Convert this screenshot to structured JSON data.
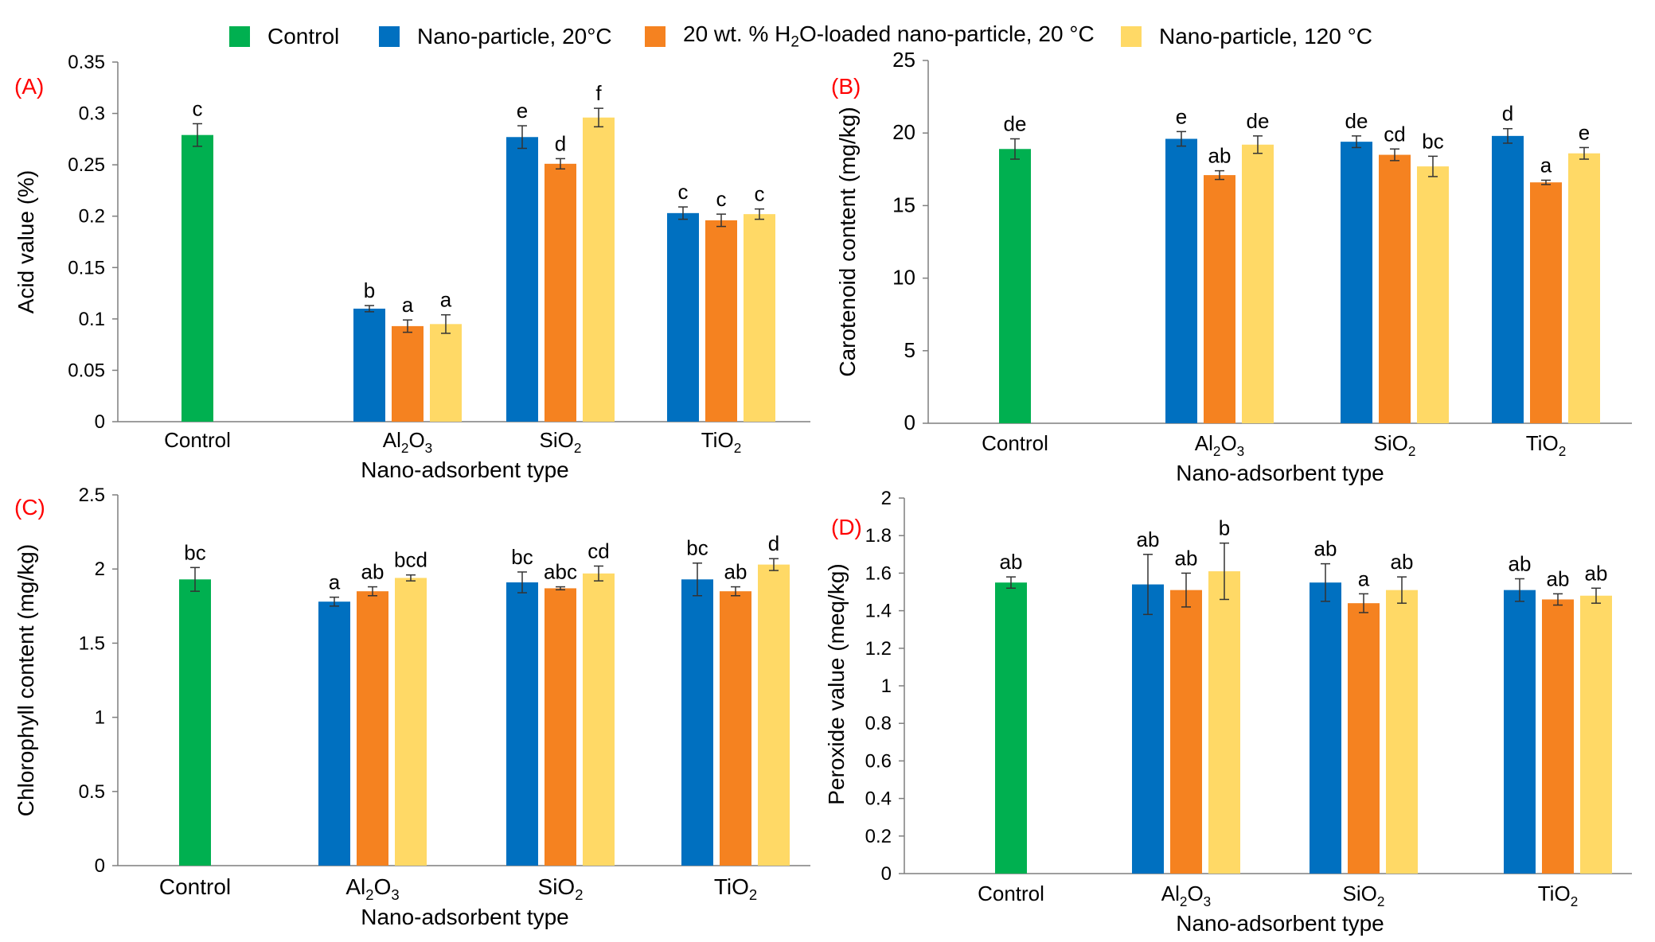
{
  "legend": {
    "items": [
      {
        "label": "Control",
        "color": "#00b050"
      },
      {
        "label": "Nano-particle, 20°C",
        "color": "#0070c0"
      },
      {
        "label_pre": "20 wt. % H",
        "label_sub": "2",
        "label_post": "O-loaded nano-particle, 20 °C",
        "color": "#f58220"
      },
      {
        "label": "Nano-particle, 120 °C",
        "color": "#ffd966"
      }
    ]
  },
  "colors": {
    "control": "#00b050",
    "np20": "#0070c0",
    "h2o20": "#f58220",
    "np120": "#ffd966",
    "panel_label": "#ff0000"
  },
  "chart_data": [
    {
      "panel": "(A)",
      "type": "bar",
      "ylabel": "Acid value (%)",
      "xlabel": "Nano-adsorbent type",
      "ylim": [
        0,
        0.35
      ],
      "yticks": [
        "0",
        "0.05",
        "0.1",
        "0.15",
        "0.2",
        "0.25",
        "0.3",
        "0.35"
      ],
      "categories": [
        {
          "pre": "Control",
          "sub1": "",
          "mid": "",
          "sub2": ""
        },
        {
          "pre": "Al",
          "sub1": "2",
          "mid": "O",
          "sub2": "3"
        },
        {
          "pre": "SiO",
          "sub1": "2",
          "mid": "",
          "sub2": ""
        },
        {
          "pre": "TiO",
          "sub1": "2",
          "mid": "",
          "sub2": ""
        }
      ],
      "series": [
        {
          "name": "Control",
          "values": [
            0.279,
            null,
            null,
            null
          ],
          "errors": [
            0.011,
            null,
            null,
            null
          ],
          "letters": [
            "c",
            null,
            null,
            null
          ]
        },
        {
          "name": "Nano-particle, 20°C",
          "values": [
            null,
            0.11,
            0.277,
            0.203
          ],
          "errors": [
            null,
            0.003,
            0.011,
            0.006
          ],
          "letters": [
            null,
            "b",
            "e",
            "c"
          ]
        },
        {
          "name": "20 wt. % H2O-loaded nano-particle, 20 °C",
          "values": [
            null,
            0.093,
            0.251,
            0.196
          ],
          "errors": [
            null,
            0.006,
            0.005,
            0.006
          ],
          "letters": [
            null,
            "a",
            "d",
            "c"
          ]
        },
        {
          "name": "Nano-particle, 120 °C",
          "values": [
            null,
            0.095,
            0.296,
            0.202
          ],
          "errors": [
            null,
            0.009,
            0.009,
            0.005
          ],
          "letters": [
            null,
            "a",
            "f",
            "c"
          ]
        }
      ]
    },
    {
      "panel": "(B)",
      "type": "bar",
      "ylabel": "Carotenoid content (mg/kg)",
      "xlabel": "Nano-adsorbent type",
      "ylim": [
        0,
        25
      ],
      "yticks": [
        "0",
        "5",
        "10",
        "15",
        "20",
        "25"
      ],
      "categories": [
        {
          "pre": "Control",
          "sub1": "",
          "mid": "",
          "sub2": ""
        },
        {
          "pre": "Al",
          "sub1": "2",
          "mid": "O",
          "sub2": "3"
        },
        {
          "pre": "SiO",
          "sub1": "2",
          "mid": "",
          "sub2": ""
        },
        {
          "pre": "TiO",
          "sub1": "2",
          "mid": "",
          "sub2": ""
        }
      ],
      "series": [
        {
          "name": "Control",
          "values": [
            18.9,
            null,
            null,
            null
          ],
          "errors": [
            0.7,
            null,
            null,
            null
          ],
          "letters": [
            "de",
            null,
            null,
            null
          ]
        },
        {
          "name": "Nano-particle, 20°C",
          "values": [
            null,
            19.6,
            19.4,
            19.8
          ],
          "errors": [
            null,
            0.5,
            0.4,
            0.5
          ],
          "letters": [
            null,
            "e",
            "de",
            "d"
          ]
        },
        {
          "name": "20 wt. % H2O-loaded nano-particle, 20 °C",
          "values": [
            null,
            17.1,
            18.5,
            16.6
          ],
          "errors": [
            null,
            0.3,
            0.4,
            0.15
          ],
          "letters": [
            null,
            "ab",
            "cd",
            "a"
          ]
        },
        {
          "name": "Nano-particle, 120 °C",
          "values": [
            null,
            19.2,
            17.7,
            18.6
          ],
          "errors": [
            null,
            0.6,
            0.7,
            0.4
          ],
          "letters": [
            null,
            "de",
            "bc",
            "e"
          ]
        }
      ]
    },
    {
      "panel": "(C)",
      "type": "bar",
      "ylabel": "Chlorophyll content (mg/kg)",
      "xlabel": "Nano-adsorbent type",
      "ylim": [
        0,
        2.5
      ],
      "yticks": [
        "0",
        "0.5",
        "1",
        "1.5",
        "2",
        "2.5"
      ],
      "categories": [
        {
          "pre": "Control",
          "sub1": "",
          "mid": "",
          "sub2": ""
        },
        {
          "pre": "Al",
          "sub1": "2",
          "mid": "O",
          "sub2": "3"
        },
        {
          "pre": "SiO",
          "sub1": "2",
          "mid": "",
          "sub2": ""
        },
        {
          "pre": "TiO",
          "sub1": "2",
          "mid": "",
          "sub2": ""
        }
      ],
      "series": [
        {
          "name": "Control",
          "values": [
            1.93,
            null,
            null,
            null
          ],
          "errors": [
            0.08,
            null,
            null,
            null
          ],
          "letters": [
            "bc",
            null,
            null,
            null
          ]
        },
        {
          "name": "Nano-particle, 20°C",
          "values": [
            null,
            1.78,
            1.91,
            1.93
          ],
          "errors": [
            null,
            0.03,
            0.07,
            0.11
          ],
          "letters": [
            null,
            "a",
            "bc",
            "bc"
          ]
        },
        {
          "name": "20 wt. % H2O-loaded nano-particle, 20 °C",
          "values": [
            null,
            1.85,
            1.87,
            1.85
          ],
          "errors": [
            null,
            0.03,
            0.01,
            0.03
          ],
          "letters": [
            null,
            "ab",
            "abc",
            "ab"
          ]
        },
        {
          "name": "Nano-particle, 120 °C",
          "values": [
            null,
            1.94,
            1.97,
            2.03
          ],
          "errors": [
            null,
            0.02,
            0.05,
            0.04
          ],
          "letters": [
            null,
            "bcd",
            "cd",
            "d"
          ]
        }
      ]
    },
    {
      "panel": "(D)",
      "type": "bar",
      "ylabel": "Peroxide value (meq/kg)",
      "xlabel": "Nano-adsorbent type",
      "ylim": [
        0,
        2
      ],
      "yticks": [
        "0",
        "0.2",
        "0.4",
        "0.6",
        "0.8",
        "1",
        "1.2",
        "1.4",
        "1.6",
        "1.8",
        "2"
      ],
      "categories": [
        {
          "pre": "Control",
          "sub1": "",
          "mid": "",
          "sub2": ""
        },
        {
          "pre": "Al",
          "sub1": "2",
          "mid": "O",
          "sub2": "3"
        },
        {
          "pre": "SiO",
          "sub1": "2",
          "mid": "",
          "sub2": ""
        },
        {
          "pre": "TiO",
          "sub1": "2",
          "mid": "",
          "sub2": ""
        }
      ],
      "series": [
        {
          "name": "Control",
          "values": [
            1.55,
            null,
            null,
            null
          ],
          "errors": [
            0.03,
            null,
            null,
            null
          ],
          "letters": [
            "ab",
            null,
            null,
            null
          ]
        },
        {
          "name": "Nano-particle, 20°C",
          "values": [
            null,
            1.54,
            1.55,
            1.51
          ],
          "errors": [
            null,
            0.16,
            0.1,
            0.06
          ],
          "letters": [
            null,
            "ab",
            "ab",
            "ab"
          ]
        },
        {
          "name": "20 wt. % H2O-loaded nano-particle, 20 °C",
          "values": [
            null,
            1.51,
            1.44,
            1.46
          ],
          "errors": [
            null,
            0.09,
            0.05,
            0.03
          ],
          "letters": [
            null,
            "ab",
            "a",
            "ab"
          ]
        },
        {
          "name": "Nano-particle, 120 °C",
          "values": [
            null,
            1.61,
            1.51,
            1.48
          ],
          "errors": [
            null,
            0.15,
            0.07,
            0.04
          ],
          "letters": [
            null,
            "b",
            "ab",
            "ab"
          ]
        }
      ]
    }
  ]
}
